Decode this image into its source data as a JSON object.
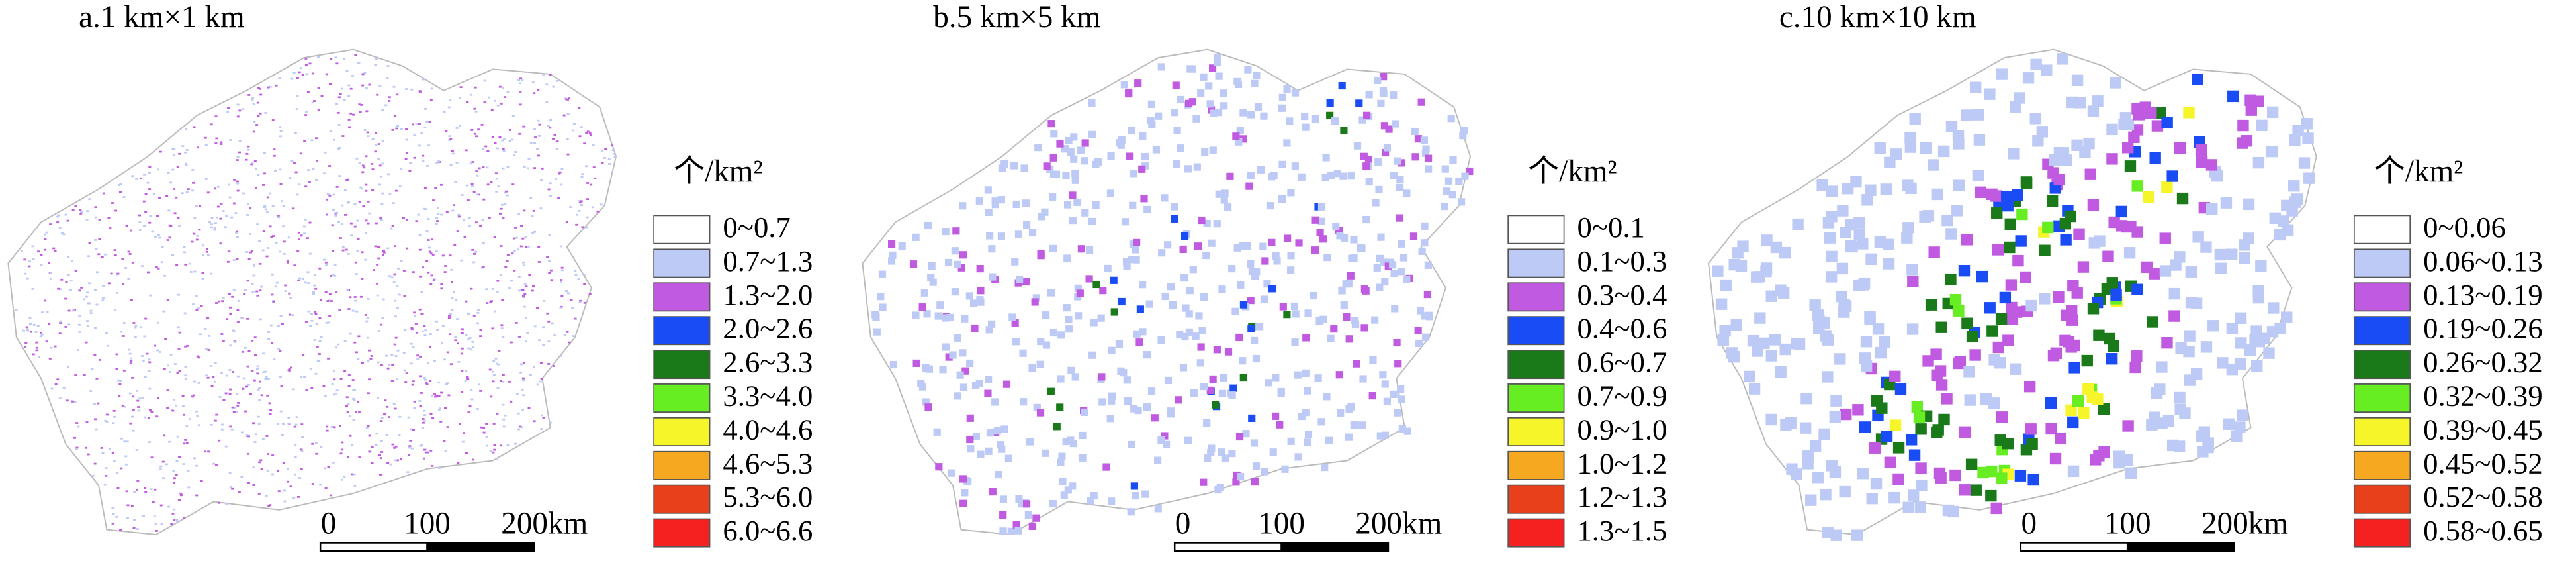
{
  "panels": [
    {
      "title": "a.1 km×1 km",
      "legend": {
        "unit": "个/km²",
        "classes": [
          "0~0.7",
          "0.7~1.3",
          "1.3~2.0",
          "2.0~2.6",
          "2.6~3.3",
          "3.3~4.0",
          "4.0~4.6",
          "4.6~5.3",
          "5.3~6.0",
          "6.0~6.6"
        ]
      },
      "scale_bar": [
        "0",
        "100",
        "200km"
      ]
    },
    {
      "title": "b.5 km×5 km",
      "legend": {
        "unit": "个/km²",
        "classes": [
          "0~0.1",
          "0.1~0.3",
          "0.3~0.4",
          "0.4~0.6",
          "0.6~0.7",
          "0.7~0.9",
          "0.9~1.0",
          "1.0~1.2",
          "1.2~1.3",
          "1.3~1.5"
        ]
      },
      "scale_bar": [
        "0",
        "100",
        "200km"
      ]
    },
    {
      "title": "c.10 km×10 km",
      "legend": {
        "unit": "个/km²",
        "classes": [
          "0~0.06",
          "0.06~0.13",
          "0.13~0.19",
          "0.19~0.26",
          "0.26~0.32",
          "0.32~0.39",
          "0.39~0.45",
          "0.45~0.52",
          "0.52~0.58",
          "0.58~0.65"
        ]
      },
      "scale_bar": [
        "0",
        "100",
        "200km"
      ]
    }
  ],
  "legend_colors": [
    "#ffffff",
    "#bccaf5",
    "#c05ae0",
    "#1a4cf5",
    "#1a7a1a",
    "#66ee22",
    "#f5f52a",
    "#f5a820",
    "#e8401a",
    "#f52020"
  ]
}
